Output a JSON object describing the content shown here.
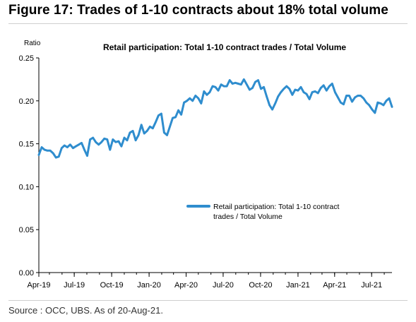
{
  "figure_title": "Figure 17: Trades of 1-10 contracts about 18% total volume",
  "source_note": "Source : OCC, UBS. As of 20-Aug-21.",
  "chart_data": {
    "type": "line",
    "title": "Retail participation: Total 1-10 contract trades / Total Volume",
    "ylabel": "Ratio",
    "xlabel": "",
    "ylim": [
      0,
      0.25
    ],
    "y_ticks": [
      "0.00",
      "0.05",
      "0.10",
      "0.15",
      "0.20",
      "0.25"
    ],
    "x_ticks": [
      "Apr-19",
      "Jul-19",
      "Oct-19",
      "Jan-20",
      "Apr-20",
      "Jul-20",
      "Oct-20",
      "Jan-21",
      "Apr-21",
      "Jul-21"
    ],
    "x_range": [
      "2019-04-05",
      "2021-08-20"
    ],
    "grid": false,
    "legend_position": "center-right",
    "series": [
      {
        "name": "Retail participation: Total 1-10 contract trades / Total Volume",
        "color": "#2f8dce",
        "x": [
          "2019-04-05",
          "2019-04-12",
          "2019-04-19",
          "2019-04-26",
          "2019-05-03",
          "2019-05-10",
          "2019-05-17",
          "2019-05-24",
          "2019-05-31",
          "2019-06-07",
          "2019-06-14",
          "2019-06-21",
          "2019-06-28",
          "2019-07-05",
          "2019-07-12",
          "2019-07-19",
          "2019-07-26",
          "2019-08-02",
          "2019-08-09",
          "2019-08-16",
          "2019-08-23",
          "2019-08-30",
          "2019-09-06",
          "2019-09-13",
          "2019-09-20",
          "2019-09-27",
          "2019-10-04",
          "2019-10-11",
          "2019-10-18",
          "2019-10-25",
          "2019-11-01",
          "2019-11-08",
          "2019-11-15",
          "2019-11-22",
          "2019-11-29",
          "2019-12-06",
          "2019-12-13",
          "2019-12-20",
          "2019-12-27",
          "2020-01-03",
          "2020-01-10",
          "2020-01-17",
          "2020-01-24",
          "2020-01-31",
          "2020-02-07",
          "2020-02-14",
          "2020-02-21",
          "2020-02-28",
          "2020-03-06",
          "2020-03-13",
          "2020-03-20",
          "2020-03-27",
          "2020-04-03",
          "2020-04-10",
          "2020-04-17",
          "2020-04-24",
          "2020-05-01",
          "2020-05-08",
          "2020-05-15",
          "2020-05-22",
          "2020-05-29",
          "2020-06-05",
          "2020-06-12",
          "2020-06-19",
          "2020-06-26",
          "2020-07-03",
          "2020-07-10",
          "2020-07-17",
          "2020-07-24",
          "2020-07-31",
          "2020-08-07",
          "2020-08-14",
          "2020-08-21",
          "2020-08-28",
          "2020-09-04",
          "2020-09-11",
          "2020-09-18",
          "2020-09-25",
          "2020-10-02",
          "2020-10-09",
          "2020-10-16",
          "2020-10-23",
          "2020-10-30",
          "2020-11-06",
          "2020-11-13",
          "2020-11-20",
          "2020-11-27",
          "2020-12-04",
          "2020-12-11",
          "2020-12-18",
          "2020-12-25",
          "2021-01-01",
          "2021-01-08",
          "2021-01-15",
          "2021-01-22",
          "2021-01-29",
          "2021-02-05",
          "2021-02-12",
          "2021-02-19",
          "2021-02-26",
          "2021-03-05",
          "2021-03-12",
          "2021-03-19",
          "2021-03-26",
          "2021-04-02",
          "2021-04-09",
          "2021-04-16",
          "2021-04-23",
          "2021-04-30",
          "2021-05-07",
          "2021-05-14",
          "2021-05-21",
          "2021-05-28",
          "2021-06-04",
          "2021-06-11",
          "2021-06-18",
          "2021-06-25",
          "2021-07-02",
          "2021-07-09",
          "2021-07-16",
          "2021-07-23",
          "2021-07-30",
          "2021-08-06",
          "2021-08-13",
          "2021-08-20"
        ],
        "values": [
          0.137,
          0.146,
          0.143,
          0.142,
          0.142,
          0.139,
          0.134,
          0.135,
          0.145,
          0.148,
          0.146,
          0.149,
          0.145,
          0.147,
          0.149,
          0.151,
          0.143,
          0.136,
          0.155,
          0.157,
          0.152,
          0.149,
          0.152,
          0.156,
          0.155,
          0.143,
          0.155,
          0.152,
          0.153,
          0.147,
          0.157,
          0.154,
          0.163,
          0.165,
          0.154,
          0.16,
          0.172,
          0.162,
          0.165,
          0.17,
          0.168,
          0.175,
          0.183,
          0.185,
          0.163,
          0.16,
          0.17,
          0.18,
          0.181,
          0.189,
          0.184,
          0.198,
          0.2,
          0.203,
          0.2,
          0.206,
          0.203,
          0.197,
          0.211,
          0.207,
          0.21,
          0.217,
          0.216,
          0.212,
          0.219,
          0.217,
          0.217,
          0.224,
          0.22,
          0.221,
          0.22,
          0.219,
          0.225,
          0.219,
          0.213,
          0.215,
          0.222,
          0.224,
          0.214,
          0.216,
          0.205,
          0.195,
          0.19,
          0.197,
          0.205,
          0.21,
          0.214,
          0.217,
          0.214,
          0.207,
          0.213,
          0.212,
          0.216,
          0.21,
          0.208,
          0.202,
          0.21,
          0.211,
          0.209,
          0.215,
          0.218,
          0.212,
          0.217,
          0.22,
          0.21,
          0.204,
          0.198,
          0.196,
          0.206,
          0.206,
          0.199,
          0.204,
          0.206,
          0.206,
          0.203,
          0.198,
          0.195,
          0.19,
          0.186,
          0.198,
          0.197,
          0.195,
          0.2,
          0.203,
          0.193
        ]
      }
    ]
  }
}
